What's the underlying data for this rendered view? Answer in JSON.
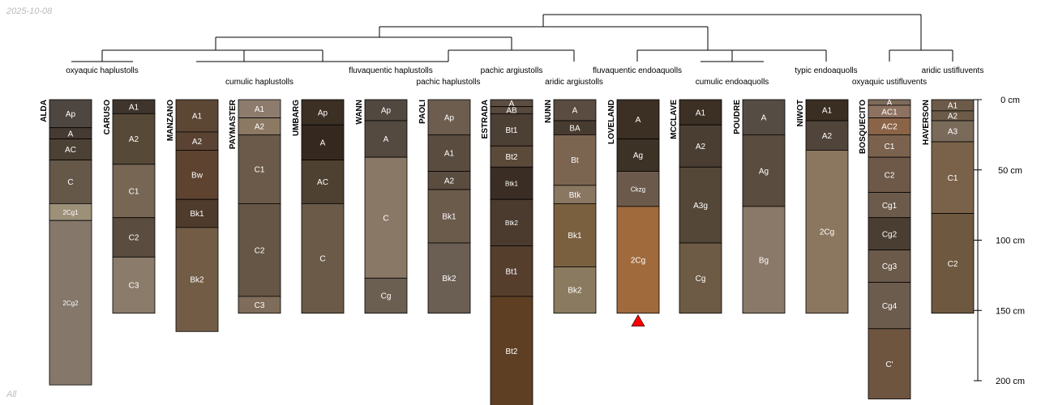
{
  "meta": {
    "date": "2025-10-08",
    "footer": "All"
  },
  "chart_data": {
    "type": "soil-profile-sketch",
    "depth_axis": {
      "unit": "cm",
      "ticks": [
        0,
        50,
        100,
        150,
        200
      ],
      "tick_labels": [
        "0 cm",
        "50 cm",
        "100 cm",
        "150 cm",
        "200 cm"
      ]
    },
    "profiles": [
      {
        "name": "ALDA",
        "taxon": "oxyaquic haplustolls",
        "horizons": [
          {
            "name": "Ap",
            "top": 0,
            "bottom": 20,
            "color": "#4e4640"
          },
          {
            "name": "A",
            "top": 20,
            "bottom": 28,
            "color": "#453b33"
          },
          {
            "name": "AC",
            "top": 28,
            "bottom": 43,
            "color": "#4c4135"
          },
          {
            "name": "C",
            "top": 43,
            "bottom": 74,
            "color": "#655849"
          },
          {
            "name": "2Cg1",
            "top": 74,
            "bottom": 86,
            "color": "#9d9079"
          },
          {
            "name": "2Cg2",
            "top": 86,
            "bottom": 203,
            "color": "#85786a"
          }
        ]
      },
      {
        "name": "CARUSO",
        "taxon": "cumulic haplustolls",
        "horizons": [
          {
            "name": "A1",
            "top": 0,
            "bottom": 10,
            "color": "#3f352c"
          },
          {
            "name": "A2",
            "top": 10,
            "bottom": 46,
            "color": "#574937"
          },
          {
            "name": "C1",
            "top": 46,
            "bottom": 84,
            "color": "#776654"
          },
          {
            "name": "C2",
            "top": 84,
            "bottom": 112,
            "color": "#5a4c3e"
          },
          {
            "name": "C3",
            "top": 112,
            "bottom": 152,
            "color": "#8b7b6a"
          }
        ]
      },
      {
        "name": "MANZANO",
        "taxon": "cumulic haplustolls",
        "horizons": [
          {
            "name": "A1",
            "top": 0,
            "bottom": 23,
            "color": "#5c4634"
          },
          {
            "name": "A2",
            "top": 23,
            "bottom": 36,
            "color": "#5a4332"
          },
          {
            "name": "Bw",
            "top": 36,
            "bottom": 71,
            "color": "#5e4330"
          },
          {
            "name": "Bk1",
            "top": 71,
            "bottom": 91,
            "color": "#4f3b2b"
          },
          {
            "name": "Bk2",
            "top": 91,
            "bottom": 165,
            "color": "#725c45"
          }
        ]
      },
      {
        "name": "PAYMASTER",
        "taxon": "cumulic haplustolls",
        "horizons": [
          {
            "name": "A1",
            "top": 0,
            "bottom": 13,
            "color": "#8d7b6d"
          },
          {
            "name": "A2",
            "top": 13,
            "bottom": 25,
            "color": "#8c7964"
          },
          {
            "name": "C1",
            "top": 25,
            "bottom": 74,
            "color": "#6b5a49"
          },
          {
            "name": "C2",
            "top": 74,
            "bottom": 140,
            "color": "#655646"
          },
          {
            "name": "C3",
            "top": 140,
            "bottom": 152,
            "color": "#7f6c5a"
          }
        ]
      },
      {
        "name": "UMBARG",
        "taxon": "fluvaquentic haplustolls",
        "horizons": [
          {
            "name": "Ap",
            "top": 0,
            "bottom": 18,
            "color": "#3c3024"
          },
          {
            "name": "A",
            "top": 18,
            "bottom": 43,
            "color": "#35291f"
          },
          {
            "name": "AC",
            "top": 43,
            "bottom": 74,
            "color": "#4e4131"
          },
          {
            "name": "C",
            "top": 74,
            "bottom": 152,
            "color": "#6b5a48"
          }
        ]
      },
      {
        "name": "WANN",
        "taxon": "fluvaquentic haplustolls",
        "horizons": [
          {
            "name": "Ap",
            "top": 0,
            "bottom": 15,
            "color": "#514840"
          },
          {
            "name": "A",
            "top": 15,
            "bottom": 41,
            "color": "#554a3f"
          },
          {
            "name": "C",
            "top": 41,
            "bottom": 127,
            "color": "#8a7866"
          },
          {
            "name": "Cg",
            "top": 127,
            "bottom": 152,
            "color": "#6b5f52"
          }
        ]
      },
      {
        "name": "PAOLI",
        "taxon": "pachic haplustolls",
        "horizons": [
          {
            "name": "Ap",
            "top": 0,
            "bottom": 25,
            "color": "#6c5d4f"
          },
          {
            "name": "A1",
            "top": 25,
            "bottom": 51,
            "color": "#5a4c3f"
          },
          {
            "name": "A2",
            "top": 51,
            "bottom": 64,
            "color": "#5a4c3f"
          },
          {
            "name": "Bk1",
            "top": 64,
            "bottom": 102,
            "color": "#6b5b4a"
          },
          {
            "name": "Bk2",
            "top": 102,
            "bottom": 152,
            "color": "#6b5e52"
          }
        ]
      },
      {
        "name": "ESTRADA",
        "taxon": "pachic argiustolls",
        "horizons": [
          {
            "name": "A",
            "top": 0,
            "bottom": 5,
            "color": "#5b4d40"
          },
          {
            "name": "AB",
            "top": 5,
            "bottom": 10,
            "color": "#584a3d"
          },
          {
            "name": "Bt1",
            "top": 10,
            "bottom": 33,
            "color": "#4c3f33"
          },
          {
            "name": "Bt2",
            "top": 33,
            "bottom": 48,
            "color": "#5b4a3a"
          },
          {
            "name": "Btk1",
            "top": 48,
            "bottom": 71,
            "color": "#3a2e24"
          },
          {
            "name": "Btk2",
            "top": 71,
            "bottom": 104,
            "color": "#4a3b2e"
          },
          {
            "name": "Bt1",
            "top": 104,
            "bottom": 140,
            "color": "#563e2d"
          },
          {
            "name": "Bt2",
            "top": 140,
            "bottom": 218,
            "color": "#5f3f24"
          }
        ]
      },
      {
        "name": "NUNN",
        "taxon": "aridic argiustolls",
        "horizons": [
          {
            "name": "A",
            "top": 0,
            "bottom": 15,
            "color": "#5a4c40"
          },
          {
            "name": "BA",
            "top": 15,
            "bottom": 25,
            "color": "#483c31"
          },
          {
            "name": "Bt",
            "top": 25,
            "bottom": 61,
            "color": "#7c6550"
          },
          {
            "name": "Btk",
            "top": 61,
            "bottom": 74,
            "color": "#8a7762"
          },
          {
            "name": "Bk1",
            "top": 74,
            "bottom": 119,
            "color": "#7a603f"
          },
          {
            "name": "Bk2",
            "top": 119,
            "bottom": 152,
            "color": "#8a7b60"
          }
        ]
      },
      {
        "name": "LOVELAND",
        "taxon": "fluvaquentic endoaquolls",
        "marker": "red-triangle",
        "horizons": [
          {
            "name": "A",
            "top": 0,
            "bottom": 28,
            "color": "#3c3025"
          },
          {
            "name": "Ag",
            "top": 28,
            "bottom": 51,
            "color": "#3d3226"
          },
          {
            "name": "Ckzg",
            "top": 51,
            "bottom": 76,
            "color": "#6b5a4b"
          },
          {
            "name": "2Cg",
            "top": 76,
            "bottom": 152,
            "color": "#a06a3c"
          }
        ]
      },
      {
        "name": "MCCLAVE",
        "taxon": "cumulic endoaquolls",
        "horizons": [
          {
            "name": "A1",
            "top": 0,
            "bottom": 18,
            "color": "#3c3025"
          },
          {
            "name": "A2",
            "top": 18,
            "bottom": 48,
            "color": "#4a3e32"
          },
          {
            "name": "A3g",
            "top": 48,
            "bottom": 102,
            "color": "#554738"
          },
          {
            "name": "Cg",
            "top": 102,
            "bottom": 152,
            "color": "#6d5b45"
          }
        ]
      },
      {
        "name": "POUDRE",
        "taxon": "cumulic endoaquolls",
        "horizons": [
          {
            "name": "A",
            "top": 0,
            "bottom": 25,
            "color": "#554c43"
          },
          {
            "name": "Ag",
            "top": 25,
            "bottom": 76,
            "color": "#5a4c3e"
          },
          {
            "name": "Bg",
            "top": 76,
            "bottom": 152,
            "color": "#8a7868"
          }
        ]
      },
      {
        "name": "NIWOT",
        "taxon": "typic endoaquolls",
        "horizons": [
          {
            "name": "A1",
            "top": 0,
            "bottom": 15,
            "color": "#3a2e23"
          },
          {
            "name": "A2",
            "top": 15,
            "bottom": 36,
            "color": "#51443a"
          },
          {
            "name": "2Cg",
            "top": 36,
            "bottom": 152,
            "color": "#8b775f"
          }
        ]
      },
      {
        "name": "BOSQUECITO",
        "taxon": "oxyaquic ustifluvents",
        "horizons": [
          {
            "name": "A",
            "top": 0,
            "bottom": 4,
            "color": "#7d6b5a"
          },
          {
            "name": "AC1",
            "top": 4,
            "bottom": 13,
            "color": "#8e7261"
          },
          {
            "name": "AC2",
            "top": 13,
            "bottom": 25,
            "color": "#8b6448"
          },
          {
            "name": "C1",
            "top": 25,
            "bottom": 41,
            "color": "#7a624e"
          },
          {
            "name": "C2",
            "top": 41,
            "bottom": 66,
            "color": "#6e5848"
          },
          {
            "name": "Cg1",
            "top": 66,
            "bottom": 84,
            "color": "#6c5b4b"
          },
          {
            "name": "Cg2",
            "top": 84,
            "bottom": 107,
            "color": "#4a3e33"
          },
          {
            "name": "Cg3",
            "top": 107,
            "bottom": 130,
            "color": "#6b5a4a"
          },
          {
            "name": "Cg4",
            "top": 130,
            "bottom": 163,
            "color": "#6b5c4e"
          },
          {
            "name": "C'",
            "top": 163,
            "bottom": 213,
            "color": "#6e5540"
          }
        ]
      },
      {
        "name": "HAVERSON",
        "taxon": "aridic ustifluvents",
        "horizons": [
          {
            "name": "A1",
            "top": 0,
            "bottom": 8,
            "color": "#6c5b48"
          },
          {
            "name": "A2",
            "top": 8,
            "bottom": 15,
            "color": "#6c5b48"
          },
          {
            "name": "A3",
            "top": 15,
            "bottom": 30,
            "color": "#7a6a59"
          },
          {
            "name": "C1",
            "top": 30,
            "bottom": 81,
            "color": "#7a624a"
          },
          {
            "name": "C2",
            "top": 81,
            "bottom": 152,
            "color": "#6e583f"
          }
        ]
      }
    ]
  }
}
